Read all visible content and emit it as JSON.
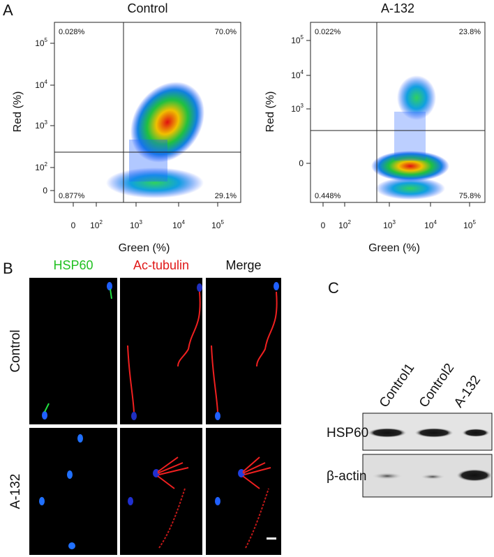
{
  "panels": {
    "a": {
      "label": "A",
      "plots": [
        {
          "title": "Control",
          "x_label": "Green (%)",
          "y_label": "Red (%)",
          "quadrants": [
            "0.028%",
            "70.0%",
            "0.877%",
            "29.1%"
          ],
          "xticks": [
            "0",
            {
              "base": "10",
              "exp": "2"
            },
            {
              "base": "10",
              "exp": "3"
            },
            {
              "base": "10",
              "exp": "4"
            },
            {
              "base": "10",
              "exp": "5"
            }
          ],
          "yticks": [
            {
              "base": "10",
              "exp": "5"
            },
            {
              "base": "10",
              "exp": "4"
            },
            {
              "base": "10",
              "exp": "3"
            },
            {
              "base": "10",
              "exp": "2"
            },
            "0"
          ]
        },
        {
          "title": "A-132",
          "x_label": "Green (%)",
          "y_label": "Red (%)",
          "quadrants": [
            "0.022%",
            "23.8%",
            "0.448%",
            "75.8%"
          ],
          "xticks": [
            "0",
            {
              "base": "10",
              "exp": "2"
            },
            {
              "base": "10",
              "exp": "3"
            },
            {
              "base": "10",
              "exp": "4"
            },
            {
              "base": "10",
              "exp": "5"
            }
          ],
          "yticks": [
            {
              "base": "10",
              "exp": "5"
            },
            {
              "base": "10",
              "exp": "4"
            },
            {
              "base": "10",
              "exp": "3"
            },
            "0"
          ]
        }
      ]
    },
    "b": {
      "label": "B",
      "columns": [
        "HSP60",
        "Ac-tubulin",
        "Merge"
      ],
      "rows": [
        "Control",
        "A-132"
      ]
    },
    "c": {
      "label": "C",
      "lanes": [
        "Control1",
        "Control2",
        "A-132"
      ],
      "rows": [
        "HSP60",
        "β-actin"
      ]
    }
  }
}
